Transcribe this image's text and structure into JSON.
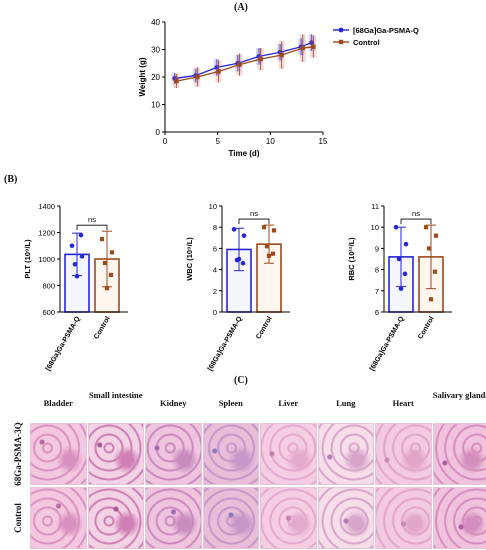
{
  "panel_labels": {
    "a": "(A)",
    "b": "(B)",
    "c": "(C)"
  },
  "colors": {
    "treatment": "#2626d9",
    "control": "#9c4a1e",
    "tissue_bg": "#f0c8e0",
    "tissue_dark": "#c77fb2"
  },
  "chart_data": [
    {
      "type": "line",
      "xlabel": "Time (d)",
      "ylabel": "Weight (g)",
      "xlim": [
        0,
        15
      ],
      "ylim": [
        0,
        40
      ],
      "xticks": [
        "0",
        "5",
        "10",
        "15"
      ],
      "yticks": [
        "0",
        "10",
        "20",
        "30",
        "40"
      ],
      "legend_placement": "top-right",
      "x": [
        1,
        3,
        5,
        7,
        9,
        11,
        13,
        14
      ],
      "series": [
        {
          "name": "[68Ga]Ga-PSMA-Q",
          "values": [
            19.5,
            20.5,
            23.5,
            25,
            27.5,
            29,
            31,
            32.5
          ],
          "error": [
            2,
            2.5,
            3,
            3,
            3,
            3,
            3,
            3
          ]
        },
        {
          "name": "Control",
          "values": [
            18.5,
            20,
            22,
            24.5,
            26.5,
            28,
            30.5,
            31
          ],
          "error": [
            2.5,
            3.5,
            4,
            4,
            4,
            5,
            5,
            4
          ]
        }
      ]
    },
    {
      "type": "bar",
      "ylabel": "PLT (10⁹/L)",
      "ylim": [
        600,
        1400
      ],
      "yticks": [
        "600",
        "800",
        "1000",
        "1200",
        "1400"
      ],
      "categories": [
        "[68Ga]Ga-PSMA-Q",
        "Control"
      ],
      "values": [
        1035,
        1000
      ],
      "error": [
        160,
        210
      ],
      "points": [
        [
          1100,
          1020,
          960,
          1180,
          870
        ],
        [
          1150,
          1050,
          970,
          880,
          780
        ]
      ],
      "annotation": "ns"
    },
    {
      "type": "bar",
      "ylabel": "WBC (10⁹/L)",
      "ylim": [
        0,
        10
      ],
      "yticks": [
        "0",
        "2",
        "4",
        "6",
        "8",
        "10"
      ],
      "categories": [
        "[68Ga]Ga-PSMA-Q",
        "Control"
      ],
      "values": [
        5.9,
        6.4
      ],
      "error": [
        2.0,
        1.8
      ],
      "points": [
        [
          7.8,
          7.2,
          4.9,
          4.6,
          5.0
        ],
        [
          8.0,
          7.7,
          6.2,
          5.5,
          5.3
        ]
      ],
      "annotation": "ns"
    },
    {
      "type": "bar",
      "ylabel": "RBC (10¹²/L)",
      "ylim": [
        6,
        11
      ],
      "yticks": [
        "6",
        "7",
        "8",
        "9",
        "10",
        "11"
      ],
      "categories": [
        "[68Ga]Ga-PSMA-Q",
        "Control"
      ],
      "values": [
        8.6,
        8.6
      ],
      "error": [
        1.4,
        1.5
      ],
      "points": [
        [
          10.0,
          9.2,
          8.5,
          7.8,
          7.1
        ],
        [
          10.0,
          9.6,
          9.0,
          7.9,
          6.6
        ]
      ],
      "annotation": "ns"
    }
  ],
  "histology": {
    "columns": [
      "Bladder",
      "Small intestine",
      "Kidney",
      "Spleen",
      "Liver",
      "Lung",
      "Heart",
      "Salivary glands"
    ],
    "rows": [
      "68Ga-PSMA-3Q",
      "Control"
    ]
  }
}
